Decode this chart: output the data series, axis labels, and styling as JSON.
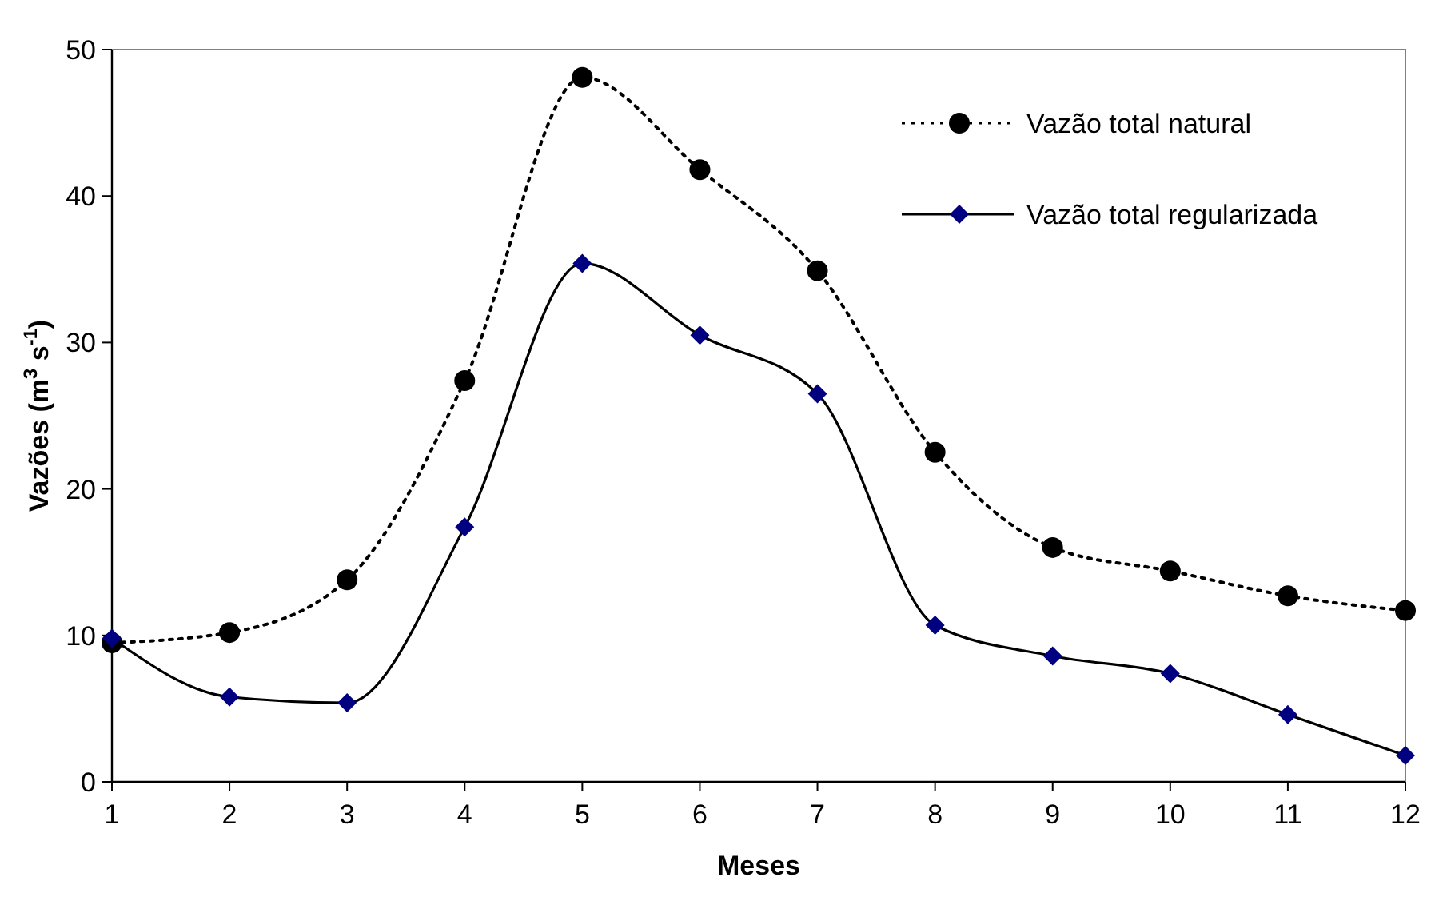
{
  "chart_data": {
    "type": "line",
    "xlabel": "Meses",
    "ylabel": "Vazões (m$^{3}$ s$^{-1}$)",
    "x": [
      1,
      2,
      3,
      4,
      5,
      6,
      7,
      8,
      9,
      10,
      11,
      12
    ],
    "xlim": [
      1,
      12
    ],
    "xticks": [
      1,
      2,
      3,
      4,
      5,
      6,
      7,
      8,
      9,
      10,
      11,
      12
    ],
    "ylim": [
      0,
      50
    ],
    "yticks": [
      0,
      10,
      20,
      30,
      40,
      50
    ],
    "grid": false,
    "legend": "top right",
    "series": [
      {
        "name": "Vazão total natural",
        "color": "#000000",
        "marker": "circle",
        "line_style": "dotted",
        "values": [
          9.5,
          10.2,
          13.8,
          27.4,
          48.1,
          41.8,
          34.9,
          22.5,
          16.0,
          14.4,
          12.7,
          11.7
        ]
      },
      {
        "name": "Vazão total regularizada",
        "color": "#000080",
        "marker": "diamond",
        "line_style": "solid",
        "values": [
          9.8,
          5.8,
          5.4,
          17.4,
          35.4,
          30.5,
          26.5,
          10.7,
          8.6,
          7.4,
          4.6,
          1.8
        ]
      }
    ]
  }
}
